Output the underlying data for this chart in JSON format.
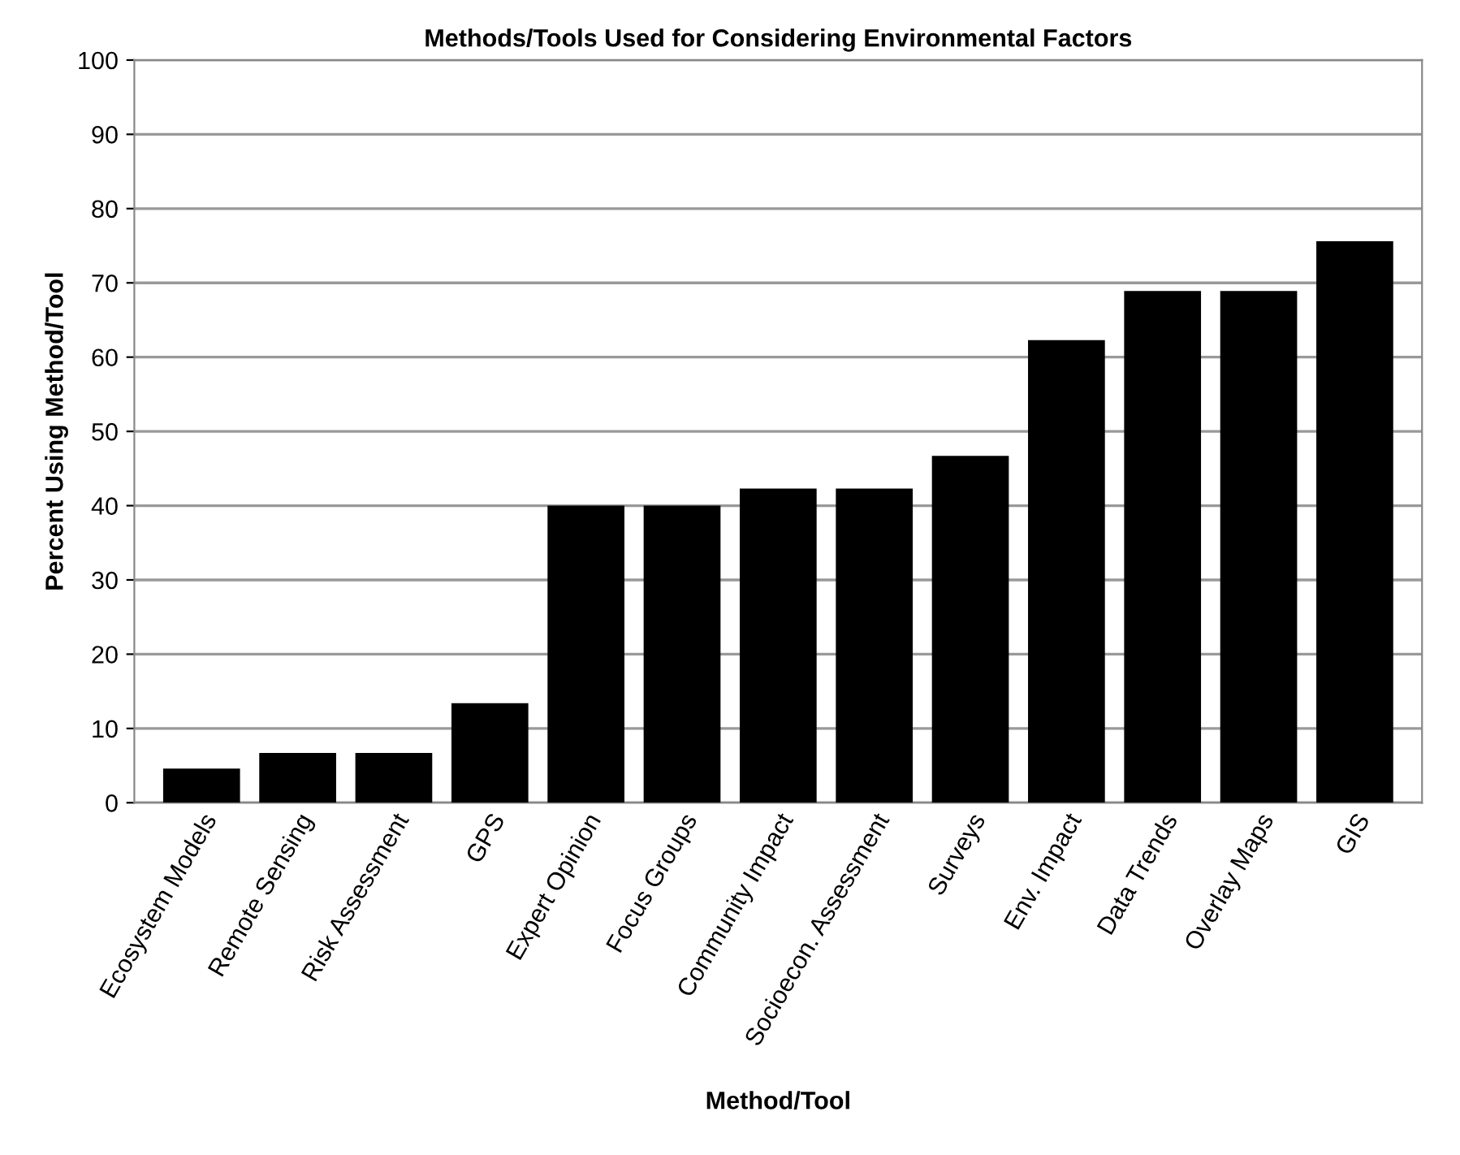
{
  "chart_data": {
    "type": "bar",
    "title": "Methods/Tools Used for Considering Environmental Factors",
    "xlabel": "Method/Tool",
    "ylabel": "Percent Using Method/Tool",
    "categories": [
      "Ecosystem Models",
      "Remote Sensing",
      "Risk Assessment",
      "GPS",
      "Expert Opinion",
      "Focus Groups",
      "Community Impact",
      "Socioecon. Assessment",
      "Surveys",
      "Env. Impact",
      "Data Trends",
      "Overlay Maps",
      "GIS"
    ],
    "values": [
      4.6,
      6.7,
      6.7,
      13.4,
      40.0,
      40.0,
      42.3,
      42.3,
      46.7,
      62.3,
      68.9,
      68.9,
      75.6
    ],
    "color": "#000000",
    "ylim": [
      0,
      100
    ],
    "yticks": [
      0,
      10,
      20,
      30,
      40,
      50,
      60,
      70,
      80,
      90,
      100
    ],
    "grid": "y"
  }
}
